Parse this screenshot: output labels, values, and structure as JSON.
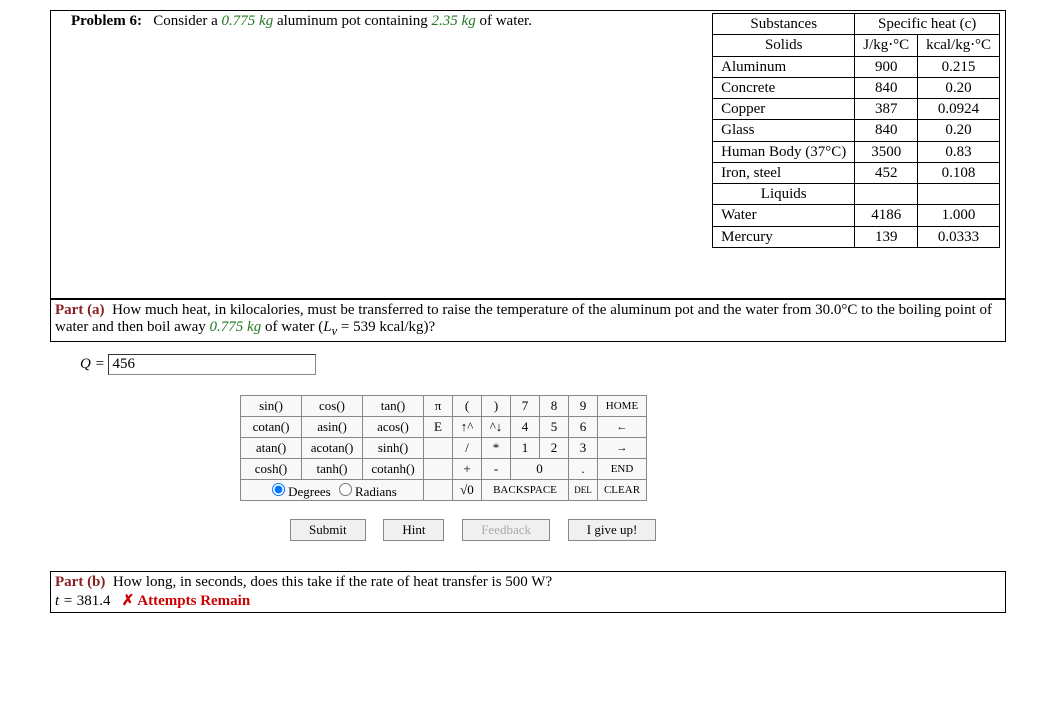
{
  "problem": {
    "label": "Problem 6:",
    "text_before_m1": "Consider a ",
    "mass1": "0.775 kg",
    "text_mid": " aluminum pot containing ",
    "mass2": "2.35 kg",
    "text_after": " of water."
  },
  "spec_table": {
    "header_substances": "Substances",
    "header_c": "Specific heat (c)",
    "sub_solids": "Solids",
    "unit1": "J/kg⋅°C",
    "unit2": "kcal/kg⋅°C",
    "solids": [
      {
        "name": "Aluminum",
        "c1": "900",
        "c2": "0.215"
      },
      {
        "name": "Concrete",
        "c1": "840",
        "c2": "0.20"
      },
      {
        "name": "Copper",
        "c1": "387",
        "c2": "0.0924"
      },
      {
        "name": "Glass",
        "c1": "840",
        "c2": "0.20"
      },
      {
        "name": "Human Body (37°C)",
        "c1": "3500",
        "c2": "0.83"
      },
      {
        "name": "Iron, steel",
        "c1": "452",
        "c2": "0.108"
      }
    ],
    "sub_liquids": "Liquids",
    "liquids": [
      {
        "name": "Water",
        "c1": "4186",
        "c2": "1.000"
      },
      {
        "name": "Mercury",
        "c1": "139",
        "c2": "0.0333"
      }
    ]
  },
  "part_a": {
    "label": "Part (a)",
    "q1": "How much heat, in kilocalories, must be transferred to raise the temperature of the aluminum pot and the water from 30.0°C to the boiling point of water and then boil away ",
    "mass": "0.775 kg",
    "q2": " of water (",
    "lv_sym": "L",
    "lv_sub": "v",
    "lv_val": " = 539 kcal/kg)?",
    "answer_label": "Q = ",
    "answer_value": "456"
  },
  "calc": {
    "row1": [
      "sin()",
      "cos()",
      "tan()",
      "π",
      "(",
      ")",
      "7",
      "8",
      "9",
      "HOME"
    ],
    "row2": [
      "cotan()",
      "asin()",
      "acos()",
      "E",
      "↑^",
      "^↓",
      "4",
      "5",
      "6",
      "←"
    ],
    "row3": [
      "atan()",
      "acotan()",
      "sinh()",
      "",
      "/",
      "*",
      "1",
      "2",
      "3",
      "→"
    ],
    "row4": [
      "cosh()",
      "tanh()",
      "cotanh()",
      "",
      "+",
      "-",
      "0",
      ".",
      "",
      "END"
    ],
    "row5": [
      "",
      "",
      "",
      "",
      "√0",
      "BACKSPACE",
      "",
      "DEL",
      "CLEAR"
    ],
    "degrees": "Degrees",
    "radians": "Radians"
  },
  "buttons": {
    "submit": "Submit",
    "hint": "Hint",
    "feedback": "Feedback",
    "giveup": "I give up!"
  },
  "part_b": {
    "label": "Part (b)",
    "q": "How long, in seconds, does this take if the rate of heat transfer is 500 W?",
    "ans_label": "t = ",
    "ans_val": "381.4",
    "attempts": "✗ Attempts Remain"
  }
}
